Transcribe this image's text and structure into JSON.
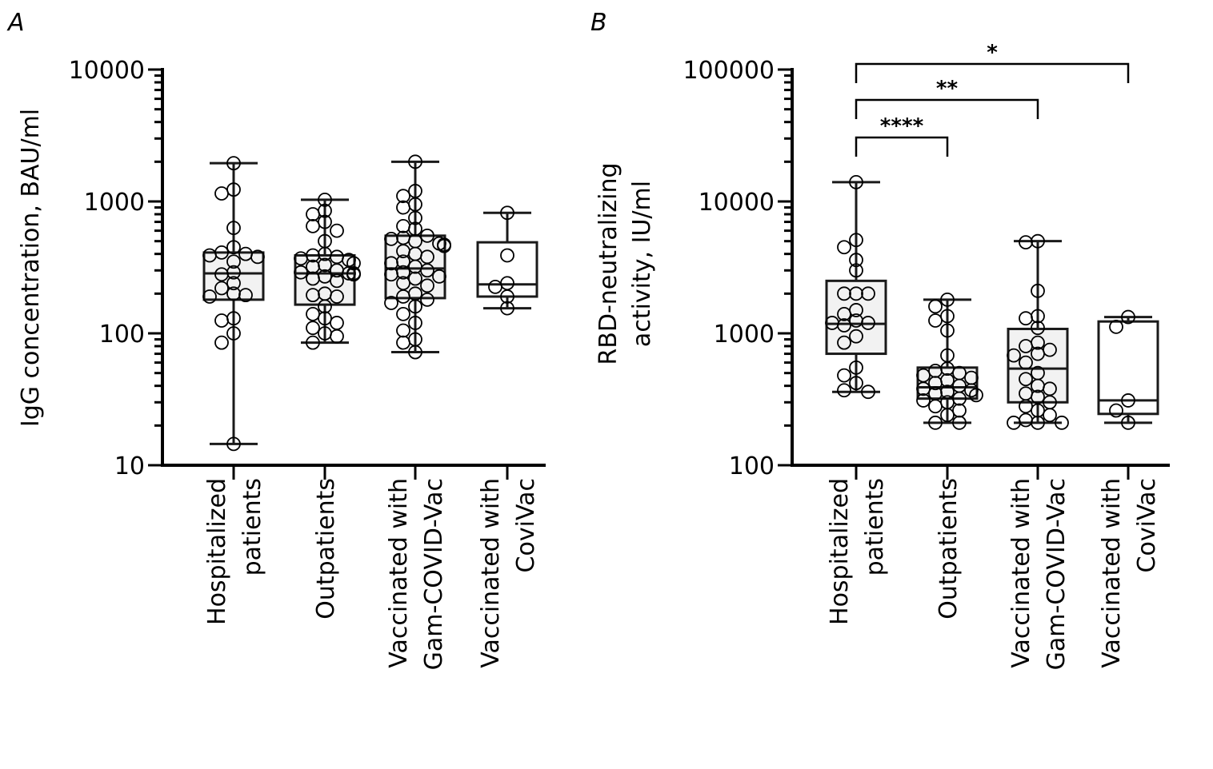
{
  "chart_data": [
    {
      "type": "box",
      "panel": "A",
      "ylabel": "IgG concentration, BAU/ml",
      "yscale": "log",
      "ylim": [
        10,
        10000
      ],
      "yticks": [
        "10",
        "100",
        "1000",
        "10000"
      ],
      "categories": [
        [
          "Hospitalized",
          "patients"
        ],
        [
          "Outpatients"
        ],
        [
          "Vaccinated with",
          "Gam-COVID-Vac"
        ],
        [
          "Vaccinated with",
          "CoviVac"
        ]
      ],
      "boxes": [
        {
          "min": 14.5,
          "q1": 180,
          "median": 285,
          "q3": 410,
          "max": 1950,
          "fill": "#f2f2f2"
        },
        {
          "min": 85,
          "q1": 165,
          "median": 285,
          "q3": 390,
          "max": 1030,
          "fill": "#f2f2f2"
        },
        {
          "min": 72,
          "q1": 185,
          "median": 310,
          "q3": 550,
          "max": 2000,
          "fill": "#f2f2f2"
        },
        {
          "min": 155,
          "q1": 190,
          "median": 235,
          "q3": 490,
          "max": 820,
          "fill": "#ffffff"
        }
      ],
      "points": [
        [
          1950,
          1230,
          1150,
          630,
          450,
          410,
          400,
          390,
          380,
          350,
          290,
          280,
          240,
          220,
          200,
          195,
          190,
          130,
          125,
          100,
          85,
          14.5
        ],
        [
          1030,
          850,
          800,
          700,
          650,
          600,
          500,
          400,
          390,
          380,
          370,
          360,
          340,
          330,
          320,
          300,
          290,
          285,
          285,
          280,
          280,
          270,
          260,
          250,
          200,
          195,
          190,
          160,
          140,
          130,
          120,
          110,
          100,
          95,
          85
        ],
        [
          2000,
          1200,
          1100,
          950,
          900,
          750,
          650,
          620,
          550,
          530,
          520,
          500,
          480,
          470,
          460,
          420,
          400,
          380,
          350,
          340,
          320,
          300,
          290,
          280,
          270,
          260,
          240,
          230,
          200,
          190,
          180,
          170,
          160,
          140,
          120,
          105,
          90,
          85,
          72
        ],
        [
          820,
          390,
          240,
          225,
          190,
          155
        ]
      ],
      "significance": []
    },
    {
      "type": "box",
      "panel": "B",
      "ylabel": [
        "RBD-neutralizing",
        "activity, IU/ml"
      ],
      "yscale": "log",
      "ylim": [
        100,
        100000
      ],
      "yticks": [
        "100",
        "1000",
        "10000",
        "100000"
      ],
      "categories": [
        [
          "Hospitalized",
          "patients"
        ],
        [
          "Outpatients"
        ],
        [
          "Vaccinated with",
          "Gam-COVID-Vac"
        ],
        [
          "Vaccinated with",
          "CoviVac"
        ]
      ],
      "boxes": [
        {
          "min": 360,
          "q1": 700,
          "median": 1180,
          "q3": 2500,
          "max": 14000,
          "fill": "#f2f2f2"
        },
        {
          "min": 210,
          "q1": 320,
          "median": 390,
          "q3": 550,
          "max": 1800,
          "fill": "#f2f2f2"
        },
        {
          "min": 210,
          "q1": 300,
          "median": 540,
          "q3": 1080,
          "max": 5000,
          "fill": "#f2f2f2"
        },
        {
          "min": 210,
          "q1": 245,
          "median": 310,
          "q3": 1230,
          "max": 1330,
          "fill": "#ffffff"
        }
      ],
      "points": [
        [
          14000,
          5100,
          4500,
          3600,
          3000,
          2000,
          2000,
          2000,
          1500,
          1400,
          1250,
          1200,
          1200,
          1150,
          950,
          850,
          550,
          480,
          420,
          370,
          360
        ],
        [
          1800,
          1600,
          1350,
          1250,
          1050,
          680,
          540,
          520,
          500,
          480,
          460,
          440,
          420,
          400,
          380,
          370,
          360,
          350,
          340,
          320,
          310,
          300,
          280,
          260,
          240,
          210,
          210
        ],
        [
          5000,
          4900,
          2100,
          1350,
          1300,
          1100,
          850,
          800,
          750,
          700,
          680,
          600,
          500,
          450,
          400,
          380,
          350,
          330,
          300,
          280,
          260,
          240,
          220,
          210,
          210,
          210
        ],
        [
          1330,
          1120,
          310,
          260,
          210
        ]
      ],
      "significance": [
        {
          "from": 0,
          "to": 1,
          "label": "****"
        },
        {
          "from": 0,
          "to": 2,
          "label": "**"
        },
        {
          "from": 0,
          "to": 3,
          "label": "*"
        }
      ]
    }
  ]
}
